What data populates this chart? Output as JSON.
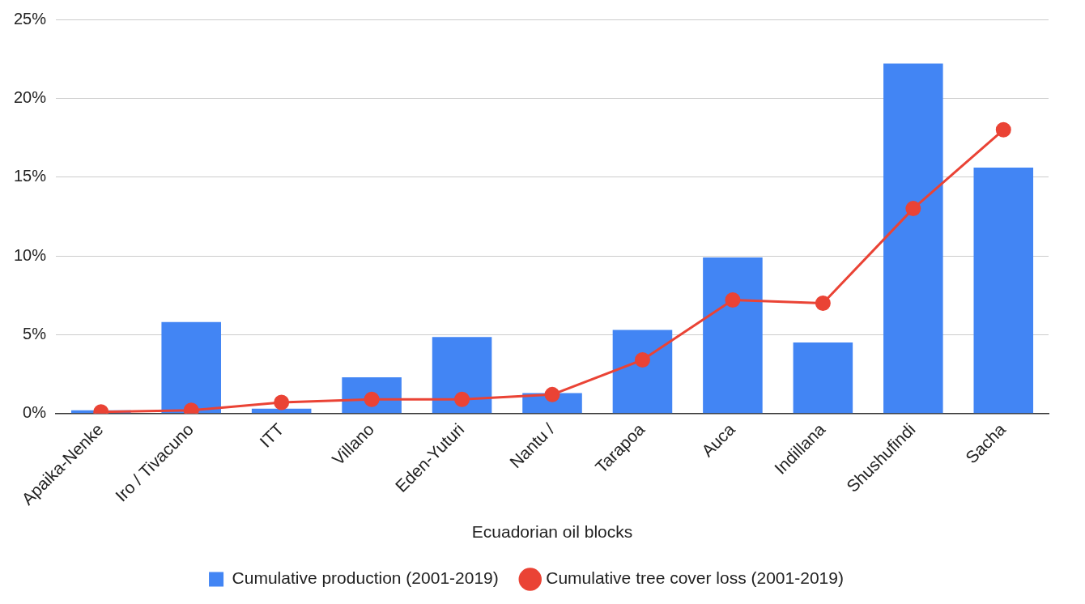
{
  "chart_data": {
    "type": "bar",
    "xlabel": "Ecuadorian oil blocks",
    "categories": [
      "Apaika-Nenke",
      "Iro / Tivacuno",
      "ITT",
      "Villano",
      "Eden-Yuturi",
      "Nantu /",
      "Tarapoa",
      "Auca",
      "Indillana",
      "Shushufindi",
      "Sacha"
    ],
    "series": [
      {
        "name": "Cumulative production (2001-2019)",
        "color": "#4285f4",
        "values": [
          0.2,
          5.8,
          0.3,
          2.3,
          4.85,
          1.3,
          5.3,
          9.9,
          4.5,
          22.2,
          15.6
        ]
      },
      {
        "name": "Cumulative tree cover loss (2001-2019)",
        "type": "line",
        "color": "#ea4335",
        "values": [
          0.1,
          0.2,
          0.7,
          0.9,
          0.9,
          1.2,
          3.4,
          7.2,
          7.0,
          13.0,
          18.0
        ]
      }
    ],
    "ylim": [
      0,
      25
    ],
    "yticks": [
      {
        "value": 0,
        "label": "0%"
      },
      {
        "value": 5,
        "label": "5%"
      },
      {
        "value": 10,
        "label": "10%"
      },
      {
        "value": 15,
        "label": "15%"
      },
      {
        "value": 20,
        "label": "20%"
      },
      {
        "value": 25,
        "label": "25%"
      }
    ],
    "grid": "y",
    "legend": "bottom",
    "marker": "circle",
    "line_style": "solid"
  }
}
